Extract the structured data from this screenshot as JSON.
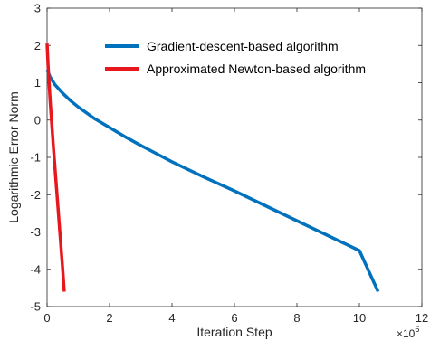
{
  "chart_data": {
    "type": "line",
    "xlabel": "Iteration Step",
    "ylabel": "Logarithmic Error Norm",
    "x_exponent_label": "×10",
    "x_exponent_power": "6",
    "xlim": [
      0,
      12
    ],
    "ylim": [
      -5,
      3
    ],
    "xticks": [
      "0",
      "2",
      "4",
      "6",
      "8",
      "10",
      "12"
    ],
    "yticks": [
      "-5",
      "-4",
      "-3",
      "-2",
      "-1",
      "0",
      "1",
      "2",
      "3"
    ],
    "grid": false,
    "legend_position": "top-right",
    "series": [
      {
        "name": "Gradient-descent-based algorithm",
        "color": "#0072BD",
        "x": [
          0,
          0.1,
          0.25,
          0.5,
          0.75,
          1.0,
          1.5,
          2.0,
          2.5,
          3.0,
          3.5,
          4.0,
          5.0,
          6.0,
          7.0,
          8.0,
          9.0,
          10.0,
          10.6
        ],
        "y": [
          1.35,
          1.15,
          0.95,
          0.72,
          0.52,
          0.35,
          0.05,
          -0.2,
          -0.45,
          -0.68,
          -0.9,
          -1.12,
          -1.52,
          -1.9,
          -2.3,
          -2.7,
          -3.1,
          -3.5,
          -4.6
        ]
      },
      {
        "name": "Approximated Newton-based algorithm",
        "color": "#E8171D",
        "x": [
          0,
          0.03,
          0.1,
          0.2,
          0.3,
          0.4,
          0.5,
          0.55
        ],
        "y": [
          2.05,
          1.5,
          0.5,
          -0.7,
          -1.8,
          -2.9,
          -4.0,
          -4.6
        ]
      }
    ]
  }
}
